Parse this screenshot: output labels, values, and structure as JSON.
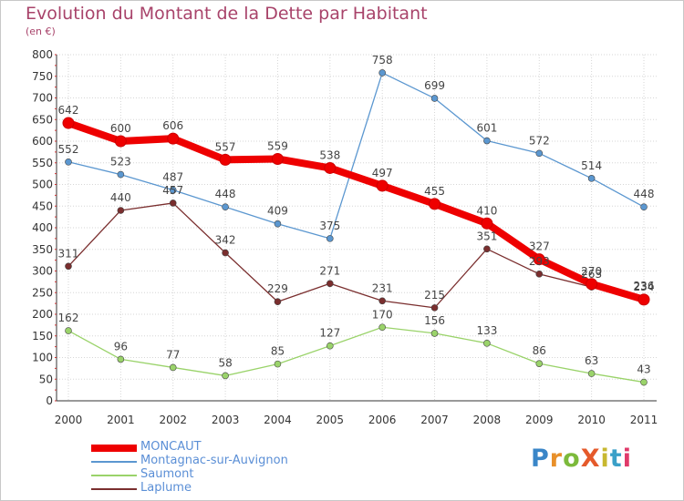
{
  "title": "Evolution du Montant de la Dette par Habitant",
  "unit_label": "(en €)",
  "logo_text": "ProXiti",
  "chart_data": {
    "type": "line",
    "title": "Evolution du Montant de la Dette par Habitant",
    "subtitle": "(en €)",
    "x": [
      "2000",
      "2001",
      "2002",
      "2003",
      "2004",
      "2005",
      "2006",
      "2007",
      "2008",
      "2009",
      "2010",
      "2011"
    ],
    "ylim": [
      0,
      800
    ],
    "yticks": [
      0,
      50,
      100,
      150,
      200,
      250,
      300,
      350,
      400,
      450,
      500,
      550,
      600,
      650,
      700,
      750,
      800
    ],
    "grid": true,
    "legend_position": "bottom-left",
    "series": [
      {
        "name": "MONCAUT",
        "color": "#ee0000",
        "values": [
          642,
          600,
          606,
          557,
          559,
          538,
          497,
          455,
          410,
          327,
          270,
          234
        ],
        "labels": [
          "642",
          "600",
          "606",
          "557",
          "559",
          "538",
          "497",
          "455",
          "410",
          "327",
          "270",
          "234"
        ]
      },
      {
        "name": "Montagnac-sur-Auvignon",
        "color": "#5b97d0",
        "values": [
          552,
          523,
          487,
          448,
          409,
          375,
          758,
          699,
          601,
          572,
          514,
          448
        ],
        "labels": [
          "552",
          "523",
          "487",
          "448",
          "409",
          "375",
          "758",
          "699",
          "601",
          "572",
          "514",
          "448"
        ]
      },
      {
        "name": "Saumont",
        "color": "#9ad36a",
        "values": [
          162,
          96,
          77,
          58,
          85,
          127,
          170,
          156,
          133,
          86,
          63,
          43
        ],
        "labels": [
          "162",
          "96",
          "77",
          "58",
          "85",
          "127",
          "170",
          "156",
          "133",
          "86",
          "63",
          "43"
        ]
      },
      {
        "name": "Laplume",
        "color": "#7a2e2e",
        "values": [
          311,
          440,
          457,
          342,
          229,
          271,
          231,
          215,
          351,
          293,
          263,
          236
        ],
        "labels": [
          "311",
          "440",
          "457",
          "342",
          "229",
          "271",
          "231",
          "215",
          "351",
          "293",
          "263",
          "236"
        ]
      }
    ]
  }
}
